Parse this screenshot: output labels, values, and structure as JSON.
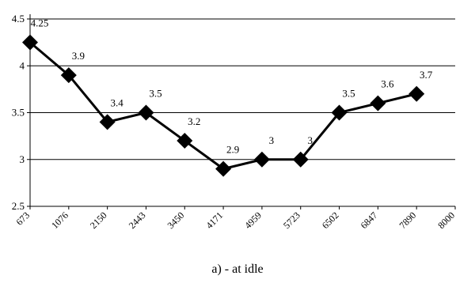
{
  "caption": "a) - at idle",
  "chart_data": {
    "type": "line",
    "categories": [
      "673",
      "1076",
      "2150",
      "2443",
      "3450",
      "4171",
      "4959",
      "5723",
      "6502",
      "6847",
      "7890",
      "8000"
    ],
    "values": [
      4.25,
      3.9,
      3.4,
      3.5,
      3.2,
      2.9,
      3,
      3,
      3.5,
      3.6,
      3.7,
      null
    ],
    "data_labels": [
      "4.25",
      "3.9",
      "3.4",
      "3.5",
      "3.2",
      "2.9",
      "3",
      "3",
      "3.5",
      "3.6",
      "3.7",
      ""
    ],
    "y_ticks": [
      "2.5",
      "3",
      "3.5",
      "4",
      "4.5"
    ],
    "y_tick_values": [
      2.5,
      3,
      3.5,
      4,
      4.5
    ],
    "ylim": [
      2.5,
      4.5
    ],
    "grid": "horizontal",
    "marker": "diamond",
    "line_color": "#000000",
    "title": "",
    "xlabel": "",
    "ylabel": ""
  }
}
